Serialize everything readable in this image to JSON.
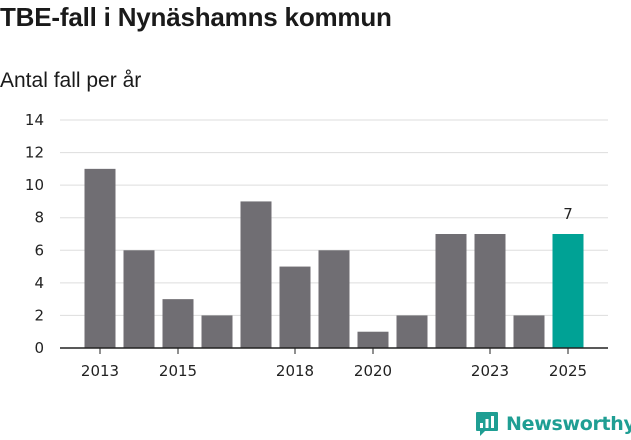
{
  "title": "TBE-fall i Nynäshamns kommun",
  "subtitle": "Antal fall per år",
  "brand": "Newsworthy",
  "colors": {
    "bar": "#706e73",
    "highlight": "#00a295",
    "grid": "#dddddd",
    "brand": "#1f9e93"
  },
  "chart_data": {
    "type": "bar",
    "categories": [
      "2013",
      "2014",
      "2015",
      "2016",
      "2017",
      "2018",
      "2019",
      "2020",
      "2021",
      "2022",
      "2023",
      "2024",
      "2025"
    ],
    "values": [
      11,
      6,
      3,
      2,
      9,
      5,
      6,
      1,
      2,
      7,
      7,
      2,
      7
    ],
    "highlight_category": "2025",
    "highlight_label": "7",
    "xtick_labels": [
      "2013",
      "2015",
      "2018",
      "2020",
      "2023",
      "2025"
    ],
    "yticks": [
      0,
      2,
      4,
      6,
      8,
      10,
      12,
      14
    ],
    "ylim": [
      0,
      14
    ],
    "grid": true,
    "legend": "none"
  }
}
